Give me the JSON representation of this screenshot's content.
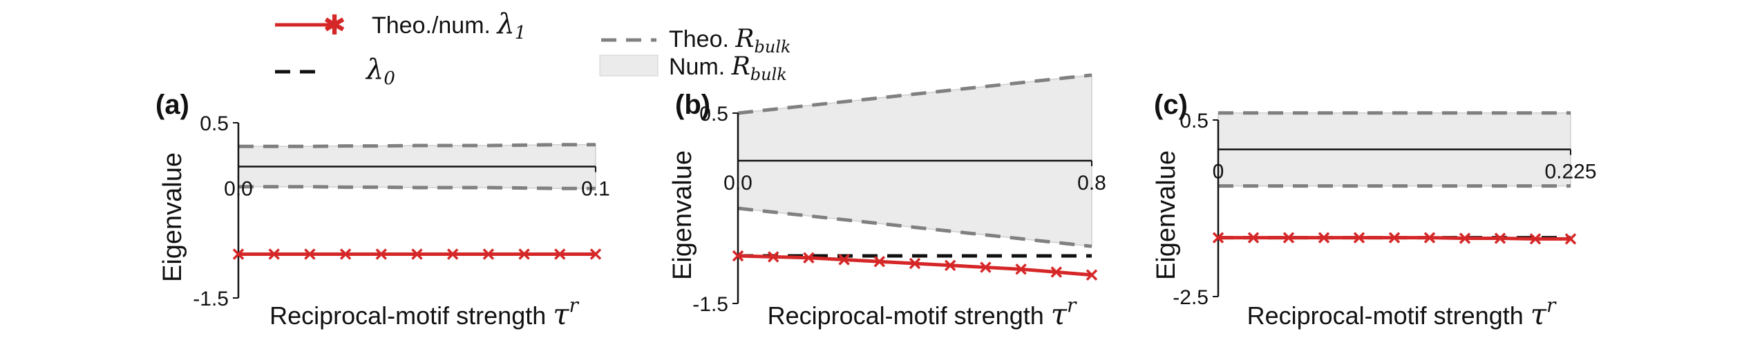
{
  "legend": {
    "items": [
      {
        "key": "lambda1",
        "label": "Theo./num.",
        "symbol": "λ",
        "sub": "1",
        "color": "#d62728"
      },
      {
        "key": "lambda0",
        "label": "",
        "symbol": "λ",
        "sub": "0",
        "color": "#111111"
      },
      {
        "key": "theo_bulk",
        "label": "Theo.",
        "symbol": "R",
        "sub": "bulk",
        "color": "#808080"
      },
      {
        "key": "num_bulk",
        "label": "Num.",
        "symbol": "R",
        "sub": "bulk",
        "color": "#e8e8e8"
      }
    ]
  },
  "colors": {
    "lambda1": "#d62728",
    "lambda0": "#111111",
    "theo_bulk": "#808080",
    "num_bulk": "#ebebeb"
  },
  "chart_data": [
    {
      "type": "line",
      "panel": "(a)",
      "ylabel": "Eigenvalue",
      "xlabel": "Reciprocal-motif strength",
      "xlabel_symbol": "τ",
      "xlabel_sup": "r",
      "xlim": [
        0.0,
        0.1
      ],
      "ylim": [
        -1.5,
        0.5
      ],
      "xticks": [
        {
          "v": 0.0,
          "t": "0.0"
        },
        {
          "v": 0.1,
          "t": "0.1"
        }
      ],
      "yticks": [
        {
          "v": 0.5,
          "t": "0.5"
        },
        {
          "v": -1.5,
          "t": "-1.5"
        }
      ],
      "x": [
        0.0,
        0.01,
        0.02,
        0.03,
        0.04,
        0.05,
        0.06,
        0.07,
        0.08,
        0.09,
        0.1
      ],
      "lambda1": [
        -1.0,
        -1.0,
        -1.0,
        -1.0,
        -1.0,
        -1.0,
        -1.0,
        -1.0,
        -1.0,
        -1.0,
        -1.0
      ],
      "lambda0": [
        -1.0,
        -1.0,
        -1.0,
        -1.0,
        -1.0,
        -1.0,
        -1.0,
        -1.0,
        -1.0,
        -1.0,
        -1.0
      ],
      "bulk_upper": [
        0.23,
        0.23,
        0.23,
        0.235,
        0.235,
        0.24,
        0.24,
        0.24,
        0.245,
        0.25,
        0.25
      ],
      "bulk_lower": [
        -0.23,
        -0.23,
        -0.23,
        -0.235,
        -0.235,
        -0.24,
        -0.24,
        -0.24,
        -0.245,
        -0.25,
        -0.25
      ]
    },
    {
      "type": "line",
      "panel": "(b)",
      "ylabel": "Eigenvalue",
      "xlabel": "Reciprocal-motif strength",
      "xlabel_symbol": "τ",
      "xlabel_sup": "r",
      "xlim": [
        0.0,
        0.8
      ],
      "ylim": [
        -1.5,
        0.5
      ],
      "xticks": [
        {
          "v": 0.0,
          "t": "0.0"
        },
        {
          "v": 0.8,
          "t": "0.8"
        }
      ],
      "yticks": [
        {
          "v": 0.5,
          "t": "0.5"
        },
        {
          "v": -1.5,
          "t": "-1.5"
        }
      ],
      "x": [
        0.0,
        0.08,
        0.16,
        0.24,
        0.32,
        0.4,
        0.48,
        0.56,
        0.64,
        0.72,
        0.8
      ],
      "lambda1": [
        -1.0,
        -1.01,
        -1.02,
        -1.04,
        -1.06,
        -1.08,
        -1.1,
        -1.12,
        -1.14,
        -1.17,
        -1.2
      ],
      "lambda0": [
        -1.0,
        -1.0,
        -1.0,
        -1.0,
        -1.0,
        -1.0,
        -1.0,
        -1.0,
        -1.0,
        -1.0,
        -1.0
      ],
      "bulk_upper": [
        0.5,
        0.54,
        0.58,
        0.62,
        0.66,
        0.7,
        0.74,
        0.78,
        0.82,
        0.86,
        0.9
      ],
      "bulk_lower": [
        -0.5,
        -0.54,
        -0.58,
        -0.62,
        -0.66,
        -0.7,
        -0.74,
        -0.78,
        -0.82,
        -0.86,
        -0.9
      ]
    },
    {
      "type": "line",
      "panel": "(c)",
      "ylabel": "Eigenvalue",
      "xlabel": "Reciprocal-motif strength",
      "xlabel_symbol": "τ",
      "xlabel_sup": "r",
      "xlim": [
        0.0,
        0.225
      ],
      "ylim": [
        -2.5,
        0.5
      ],
      "xticks": [
        {
          "v": 0.0,
          "t": "0"
        },
        {
          "v": 0.225,
          "t": "0.225"
        }
      ],
      "yticks": [
        {
          "v": 0.5,
          "t": "0.5"
        },
        {
          "v": -2.5,
          "t": "-2.5"
        }
      ],
      "x": [
        0.0,
        0.0225,
        0.045,
        0.0675,
        0.09,
        0.1125,
        0.135,
        0.1575,
        0.18,
        0.2025,
        0.225
      ],
      "lambda1": [
        -1.5,
        -1.5,
        -1.5,
        -1.5,
        -1.5,
        -1.5,
        -1.5,
        -1.51,
        -1.51,
        -1.52,
        -1.52
      ],
      "lambda0": [
        -1.5,
        -1.5,
        -1.5,
        -1.5,
        -1.5,
        -1.5,
        -1.5,
        -1.5,
        -1.5,
        -1.5,
        -1.5
      ],
      "bulk_upper": [
        0.62,
        0.62,
        0.62,
        0.62,
        0.62,
        0.62,
        0.62,
        0.62,
        0.62,
        0.62,
        0.62
      ],
      "bulk_lower": [
        -0.62,
        -0.62,
        -0.62,
        -0.62,
        -0.62,
        -0.62,
        -0.62,
        -0.62,
        -0.62,
        -0.62,
        -0.62
      ]
    }
  ]
}
